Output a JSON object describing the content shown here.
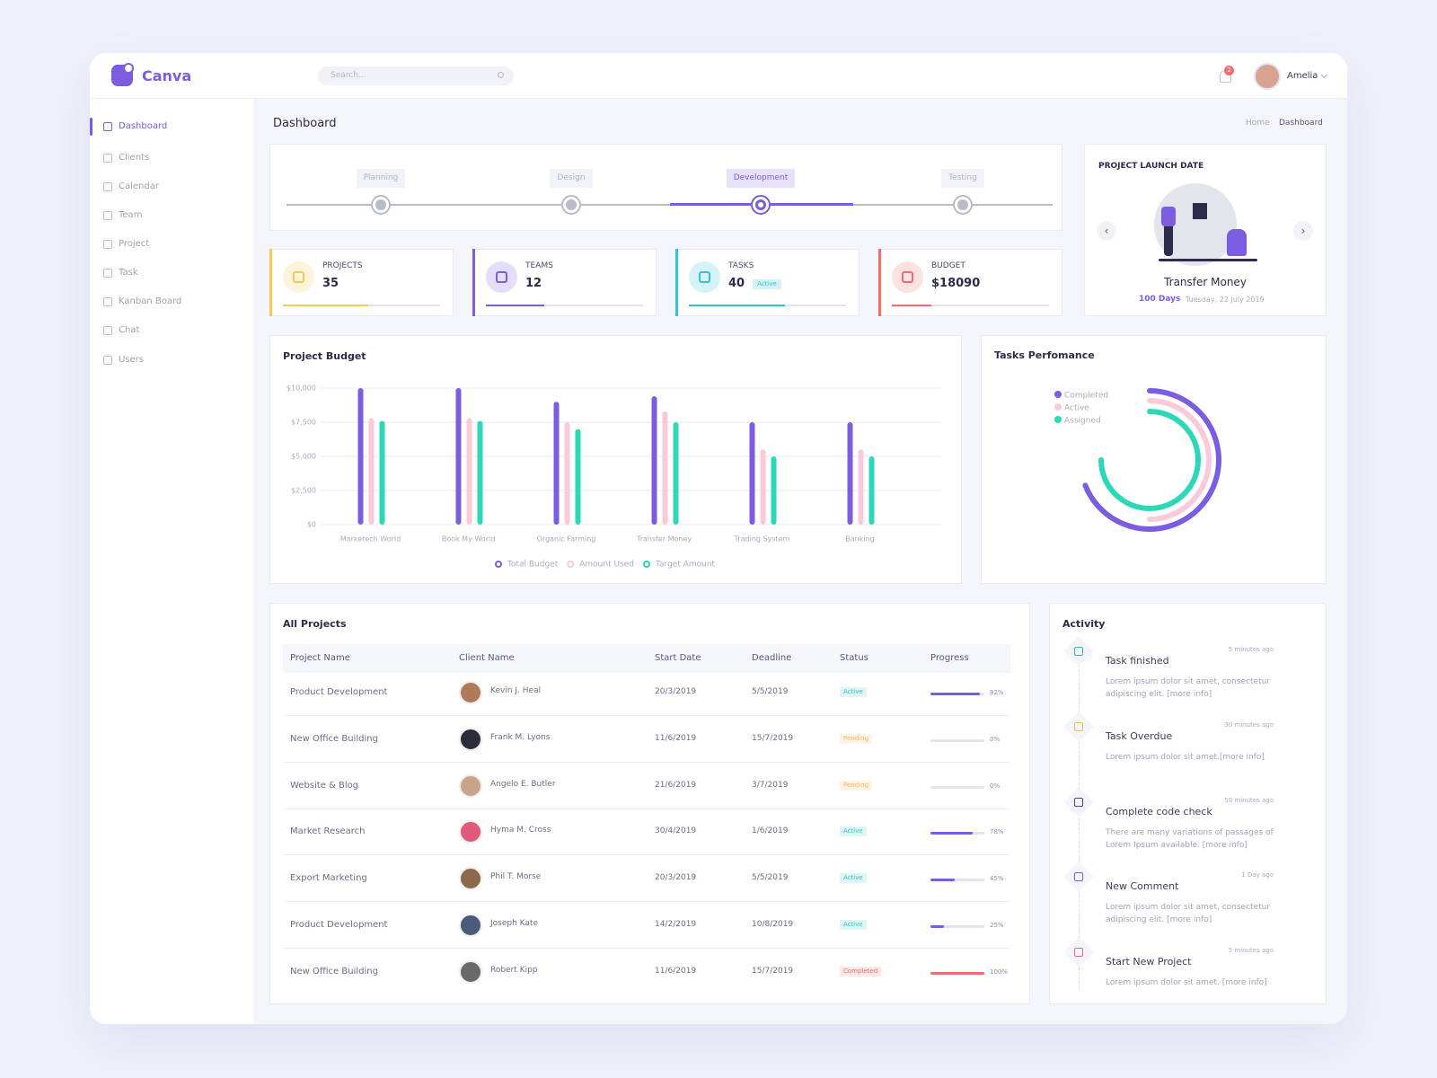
{
  "header": {
    "brand": "Canva",
    "search_placeholder": "Search...",
    "notifications": "2",
    "user": "Amelia"
  },
  "nav": {
    "active": 0,
    "items": [
      "Dashboard",
      "Clients",
      "Calendar",
      "Team",
      "Project",
      "Task",
      "Kanban Board",
      "Chat",
      "Users"
    ]
  },
  "page": {
    "title": "Dashboard",
    "breadcrumb": [
      "Home",
      "Dashboard"
    ]
  },
  "stages": {
    "active": 2,
    "items": [
      "Planning",
      "Design",
      "Development",
      "Testing"
    ]
  },
  "stats": [
    {
      "label": "PROJECTS",
      "value": "35",
      "color": "#f9c851"
    },
    {
      "label": "TEAMS",
      "value": "12",
      "color": "#7c5ce0"
    },
    {
      "label": "TASKS",
      "value": "40",
      "badge": "Active",
      "color": "#2ec4d6"
    },
    {
      "label": "BUDGET",
      "value": "$18090",
      "color": "#f06d6d"
    }
  ],
  "launch": {
    "title": "PROJECT LAUNCH DATE",
    "name": "Transfer Money",
    "days": "100 Days",
    "date": "Tuesday, 22 July 2019"
  },
  "chart_data": [
    {
      "type": "bar",
      "title": "Project Budget",
      "categories": [
        "Marketech World",
        "Book My World",
        "Organic Farming",
        "Transfer Money",
        "Trading System",
        "Banking"
      ],
      "series": [
        {
          "name": "Total Budget",
          "color": "#7c5ce0",
          "values": [
            10000,
            10000,
            9000,
            9400,
            7500,
            7500
          ]
        },
        {
          "name": "Amount Used",
          "color": "#fcc9d8",
          "values": [
            7800,
            7800,
            7500,
            8300,
            5500,
            5500
          ]
        },
        {
          "name": "Target Amount",
          "color": "#2ed8b6",
          "values": [
            7600,
            7600,
            7000,
            7500,
            5000,
            5000
          ]
        }
      ],
      "ylim": [
        0,
        10000
      ],
      "yticks": [
        {
          "value": 0,
          "label": "$0"
        },
        {
          "value": 2500,
          "label": "$2,500"
        },
        {
          "value": 5000,
          "label": "$5,000"
        },
        {
          "value": 7500,
          "label": "$7,500"
        },
        {
          "value": 10000,
          "label": "$10,000"
        }
      ],
      "grid": true
    },
    {
      "type": "radial",
      "title": "Tasks Perfomance",
      "series": [
        {
          "name": "Completed",
          "color": "#7c5ce0",
          "value": 69
        },
        {
          "name": "Active",
          "color": "#fcc9d8",
          "value": 50
        },
        {
          "name": "Assigned",
          "color": "#2ed8b6",
          "value": 75
        }
      ],
      "ylim": [
        0,
        100
      ]
    }
  ],
  "table": {
    "title": "All Projects",
    "headers": [
      "Project Name",
      "Client Name",
      "Start Date",
      "Deadline",
      "Status",
      "Progress"
    ],
    "rows": [
      {
        "project": "Product Development",
        "client": "Kevin J. Heal",
        "start": "20/3/2019",
        "deadline": "5/5/2019",
        "status": "Active",
        "status_color": "#35c2c0",
        "progress": 92,
        "progress_label": "92%",
        "bar_color": "#7c5ce0"
      },
      {
        "project": "New Office Building",
        "client": "Frank M. Lyons",
        "start": "11/6/2019",
        "deadline": "15/7/2019",
        "status": "Pending",
        "status_color": "#f8b95a",
        "progress": 0,
        "progress_label": "0%",
        "bar_color": "#7c5ce0"
      },
      {
        "project": "Website & Blog",
        "client": "Angelo E. Butler",
        "start": "21/6/2019",
        "deadline": "3/7/2019",
        "status": "Pending",
        "status_color": "#f8b95a",
        "progress": 0,
        "progress_label": "0%",
        "bar_color": "#7c5ce0"
      },
      {
        "project": "Market Research",
        "client": "Hyma M. Cross",
        "start": "30/4/2019",
        "deadline": "1/6/2019",
        "status": "Active",
        "status_color": "#35c2c0",
        "progress": 78,
        "progress_label": "78%",
        "bar_color": "#7c5ce0"
      },
      {
        "project": "Export Marketing",
        "client": "Phil T. Morse",
        "start": "20/3/2019",
        "deadline": "5/5/2019",
        "status": "Active",
        "status_color": "#35c2c0",
        "progress": 45,
        "progress_label": "45%",
        "bar_color": "#7c5ce0"
      },
      {
        "project": "Product Development",
        "client": "Joseph Kate",
        "start": "14/2/2019",
        "deadline": "10/8/2019",
        "status": "Active",
        "status_color": "#35c2c0",
        "progress": 25,
        "progress_label": "25%",
        "bar_color": "#7c5ce0"
      },
      {
        "project": "New Office Building",
        "client": "Robert Kipp",
        "start": "11/6/2019",
        "deadline": "15/7/2019",
        "status": "Completed",
        "status_color": "#f06d6d",
        "progress": 100,
        "progress_label": "100%",
        "bar_color": "#f06d6d"
      }
    ]
  },
  "activity": {
    "title": "Activity",
    "items": [
      {
        "title": "Task finished",
        "time": "5 minutes ago",
        "text": "Lorem ipsum dolor sit amet, consectetur adipiscing elit. [more info]",
        "color": "#2ec4a0"
      },
      {
        "title": "Task Overdue",
        "time": "30 minutes ago",
        "text": "Lorem ipsum dolor sit amet.[more info]",
        "color": "#f8b95a"
      },
      {
        "title": "Complete code check",
        "time": "50 minutes ago",
        "text": "There are many variations of passages of Lorem Ipsum available. [more info]",
        "color": "#4a4a8a"
      },
      {
        "title": "New Comment",
        "time": "1 Day ago",
        "text": "Lorem ipsum dolor sit amet, consectetur adipiscing elit. [more info]",
        "color": "#7c5ce0"
      },
      {
        "title": "Start New Project",
        "time": "5 minutes ago",
        "text": "Lorem ipsum dolor sit amet. [more info]",
        "color": "#f06d6d"
      }
    ]
  }
}
